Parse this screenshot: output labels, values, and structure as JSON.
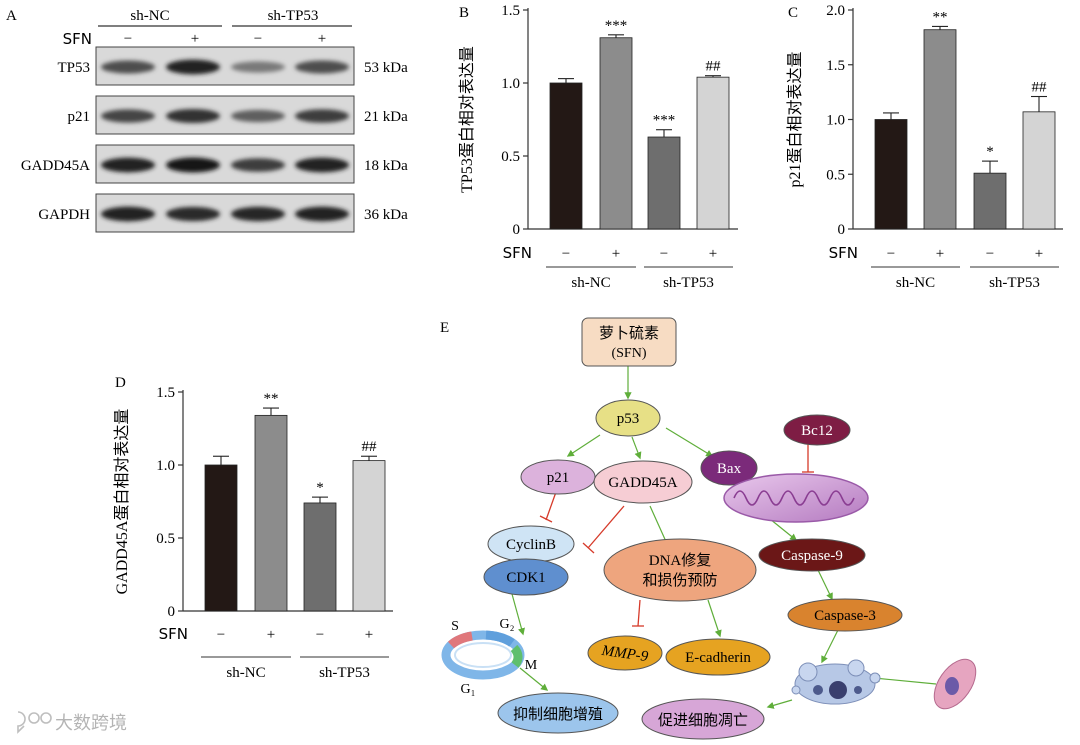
{
  "panel_a": {
    "letter": "A",
    "group_labels": [
      "sh-NC",
      "sh-TP53"
    ],
    "sfn_label": "SFN",
    "sfn_states": [
      "−",
      "+",
      "−",
      "+"
    ],
    "rows": [
      {
        "protein": "TP53",
        "size": "53 kDa",
        "intensity": [
          0.7,
          0.95,
          0.45,
          0.7
        ]
      },
      {
        "protein": "p21",
        "size": "21 kDa",
        "intensity": [
          0.75,
          0.85,
          0.6,
          0.8
        ]
      },
      {
        "protein": "GADD45A",
        "size": "18 kDa",
        "intensity": [
          0.95,
          1.0,
          0.8,
          0.95
        ]
      },
      {
        "protein": "GAPDH",
        "size": "36 kDa",
        "intensity": [
          0.95,
          0.9,
          0.92,
          0.95
        ]
      }
    ]
  },
  "chart_data": [
    {
      "type": "bar",
      "panel": "B",
      "ylabel": "TP53蛋白相对表达量",
      "categories": [
        "sh-NC SFN−",
        "sh-NC SFN+",
        "sh-TP53 SFN−",
        "sh-TP53 SFN+"
      ],
      "values": [
        1.0,
        1.31,
        0.63,
        1.04
      ],
      "errors": [
        0.03,
        0.02,
        0.05,
        0.01
      ],
      "significance": [
        "",
        "***",
        "***",
        "##"
      ],
      "ylim": [
        0,
        1.5
      ],
      "yticks": [
        "0",
        "0.5",
        "1.0",
        "1.5"
      ],
      "sfn_label": "SFN",
      "sfn_states": [
        "−",
        "+",
        "−",
        "+"
      ],
      "groups": [
        "sh-NC",
        "sh-TP53"
      ]
    },
    {
      "type": "bar",
      "panel": "C",
      "ylabel": "p21蛋白相对表达量",
      "categories": [
        "sh-NC SFN−",
        "sh-NC SFN+",
        "sh-TP53 SFN−",
        "sh-TP53 SFN+"
      ],
      "values": [
        1.0,
        1.82,
        0.51,
        1.07
      ],
      "errors": [
        0.06,
        0.03,
        0.11,
        0.14
      ],
      "significance": [
        "",
        "**",
        "*",
        "##"
      ],
      "ylim": [
        0,
        2.0
      ],
      "yticks": [
        "0",
        "0.5",
        "1.0",
        "1.5",
        "2.0"
      ],
      "sfn_label": "SFN",
      "sfn_states": [
        "−",
        "+",
        "−",
        "+"
      ],
      "groups": [
        "sh-NC",
        "sh-TP53"
      ]
    },
    {
      "type": "bar",
      "panel": "D",
      "ylabel": "GADD45A蛋白相对表达量",
      "categories": [
        "sh-NC SFN−",
        "sh-NC SFN+",
        "sh-TP53 SFN−",
        "sh-TP53 SFN+"
      ],
      "values": [
        1.0,
        1.34,
        0.74,
        1.03
      ],
      "errors": [
        0.06,
        0.05,
        0.04,
        0.03
      ],
      "significance": [
        "",
        "**",
        "*",
        "##"
      ],
      "ylim": [
        0,
        1.5
      ],
      "yticks": [
        "0",
        "0.5",
        "1.0",
        "1.5"
      ],
      "sfn_label": "SFN",
      "sfn_states": [
        "−",
        "+",
        "−",
        "+"
      ],
      "groups": [
        "sh-NC",
        "sh-TP53"
      ]
    }
  ],
  "panel_e": {
    "letter": "E",
    "nodes": {
      "sfn_line1": "萝卜硫素",
      "sfn_line2": "(SFN)",
      "p53": "p53",
      "p21": "p21",
      "gadd45a": "GADD45A",
      "bax": "Bax",
      "bcl2": "Bc12",
      "cyclinb": "CyclinB",
      "cdk1": "CDK1",
      "dna_line1": "DNA修复",
      "dna_line2": "和损伤预防",
      "caspase9": "Caspase-9",
      "caspase3": "Caspase-3",
      "mmp9": "MMP-9",
      "ecad": "E-cadherin",
      "inhibit": "抑制细胞增殖",
      "promote": "促进细胞凋亡"
    },
    "cycle_labels": {
      "s": "S",
      "g2": "G₂",
      "m": "M",
      "g1": "G₁"
    }
  },
  "watermark": "大数跨境",
  "colors": {
    "bar_dark": "#231815",
    "bar_mid": "#8c8c8c",
    "bar_darkgray": "#6e6e6e",
    "bar_light": "#d4d4d4",
    "arrow_green": "#5fae3a",
    "inhibit_red": "#d63a2a"
  }
}
